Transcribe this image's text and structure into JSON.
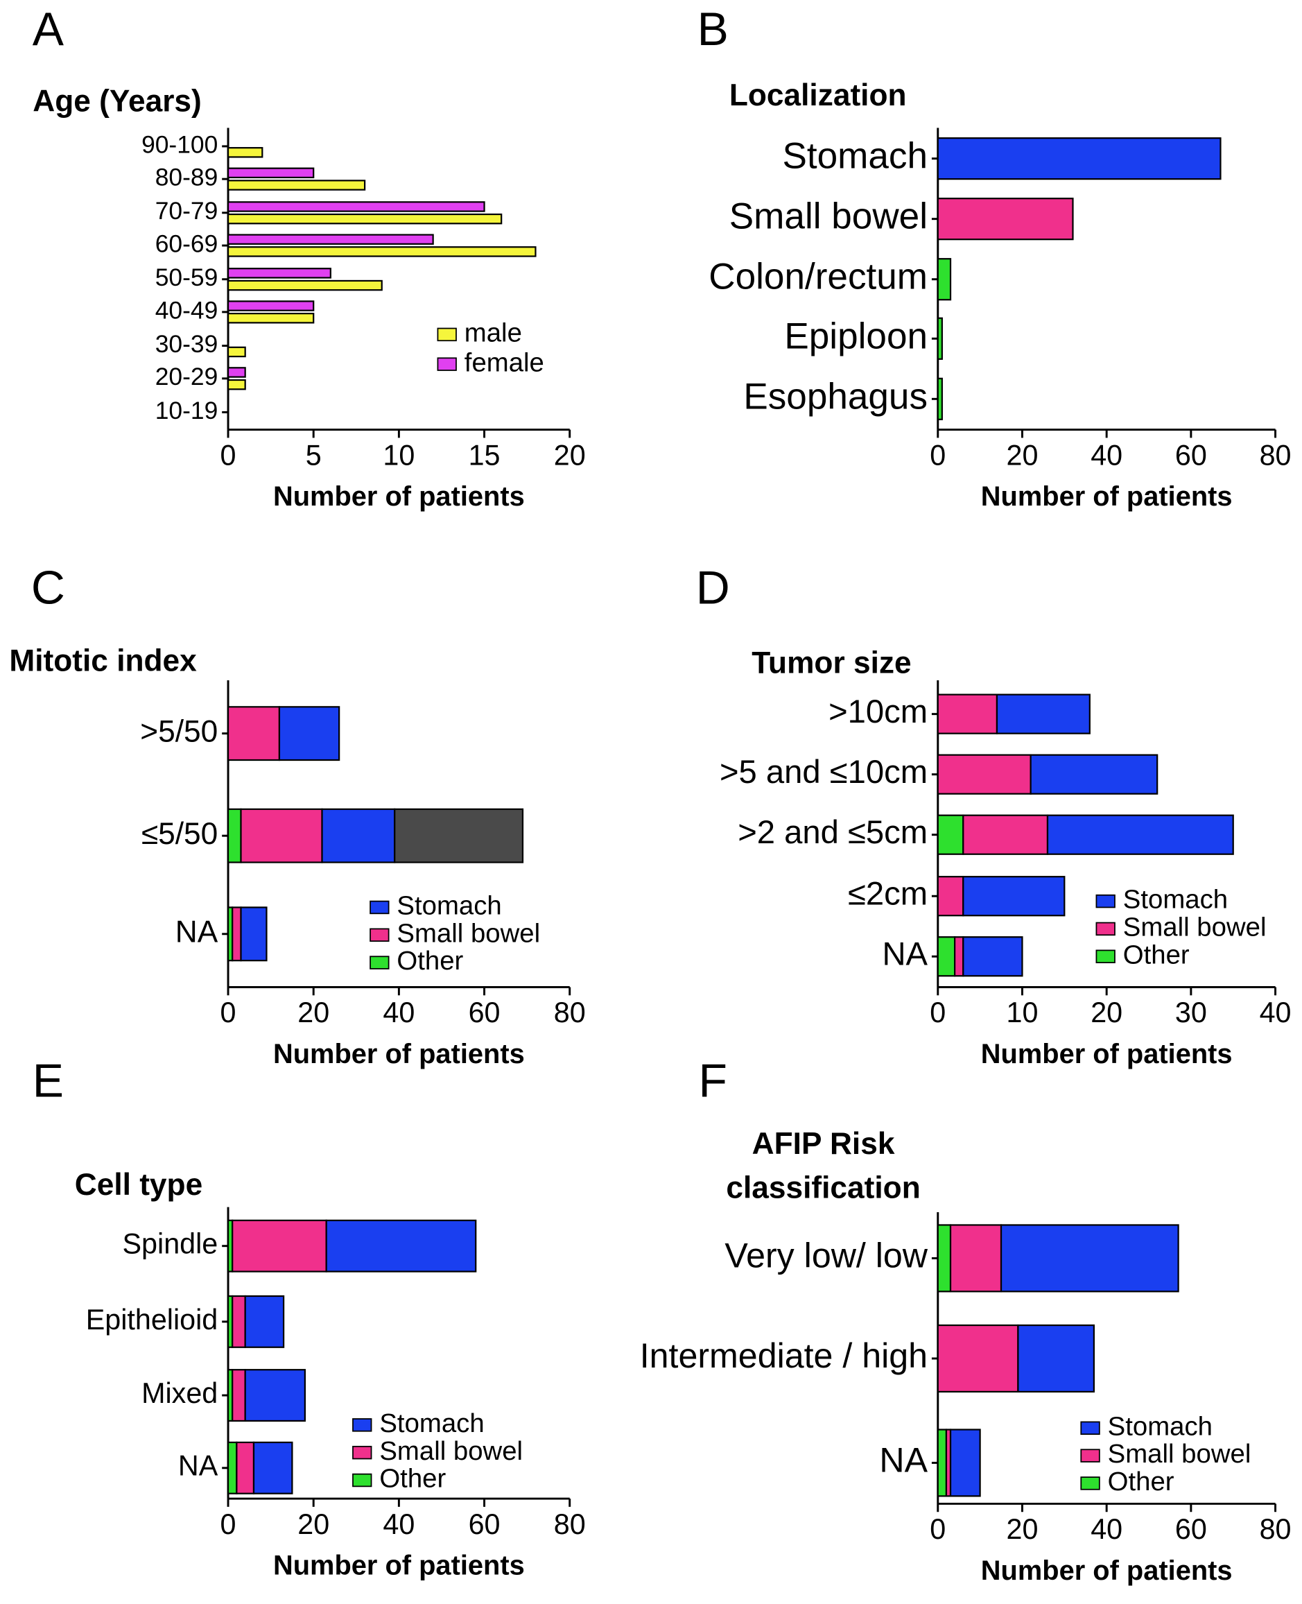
{
  "chart_data": [
    {
      "label": "A",
      "type": "grouped_bar",
      "orientation": "horizontal",
      "title": "Age (Years)",
      "categories": [
        "90-100",
        "80-89",
        "70-79",
        "60-69",
        "50-59",
        "40-49",
        "30-39",
        "20-29",
        "10-19"
      ],
      "series": [
        {
          "name": "male",
          "color": "#f5f53c",
          "values": [
            2,
            8,
            16,
            18,
            9,
            5,
            1,
            1,
            0
          ]
        },
        {
          "name": "female",
          "color": "#e040f0",
          "values": [
            0,
            5,
            15,
            12,
            6,
            5,
            0,
            1,
            0
          ]
        }
      ],
      "xlabel": "Number of patients",
      "xlim": [
        0,
        20
      ],
      "xticks": [
        0,
        5,
        10,
        15,
        20
      ],
      "legend": "lower right"
    },
    {
      "label": "B",
      "type": "bar",
      "orientation": "horizontal",
      "title": "Localization",
      "categories": [
        "Stomach",
        "Small bowel",
        "Colon/rectum",
        "Epiploon",
        "Esophagus"
      ],
      "values": [
        67,
        32,
        3,
        1,
        1
      ],
      "colors": [
        "#1a3ff0",
        "#f0308c",
        "#2ee02e",
        "#2ee02e",
        "#2ee02e"
      ],
      "xlabel": "Number of patients",
      "xlim": [
        0,
        80
      ],
      "xticks": [
        0,
        20,
        40,
        60,
        80
      ]
    },
    {
      "label": "C",
      "type": "stacked_bar",
      "orientation": "horizontal",
      "title": "Mitotic index",
      "categories": [
        ">5/50",
        "≤5/50",
        "NA"
      ],
      "series": [
        {
          "name": "Other",
          "color": "#2ee02e",
          "values": [
            0,
            3,
            1
          ]
        },
        {
          "name": "Small bowel",
          "color": "#f0308c",
          "values": [
            12,
            19,
            2
          ]
        },
        {
          "name": "Stomach",
          "color": "#1a3ff0",
          "values": [
            14,
            17,
            6
          ]
        },
        {
          "color": "#4a4a4a",
          "values": [
            0,
            30,
            0
          ]
        }
      ],
      "xlabel": "Number of patients",
      "xlim": [
        0,
        80
      ],
      "xticks": [
        0,
        20,
        40,
        60,
        80
      ],
      "legend": "lower right"
    },
    {
      "label": "D",
      "type": "stacked_bar",
      "orientation": "horizontal",
      "title": "Tumor size",
      "categories": [
        ">10cm",
        ">5 and ≤10cm",
        ">2 and ≤5cm",
        "≤2cm",
        "NA"
      ],
      "series": [
        {
          "name": "Other",
          "color": "#2ee02e",
          "values": [
            0,
            0,
            3,
            0,
            2
          ]
        },
        {
          "name": "Small bowel",
          "color": "#f0308c",
          "values": [
            7,
            11,
            10,
            3,
            1
          ]
        },
        {
          "name": "Stomach",
          "color": "#1a3ff0",
          "values": [
            11,
            15,
            22,
            12,
            7
          ]
        }
      ],
      "xlabel": "Number of patients",
      "xlim": [
        0,
        40
      ],
      "xticks": [
        0,
        10,
        20,
        30,
        40
      ],
      "legend": "lower right"
    },
    {
      "label": "E",
      "type": "stacked_bar",
      "orientation": "horizontal",
      "title": "Cell type",
      "categories": [
        "Spindle",
        "Epithelioid",
        "Mixed",
        "NA"
      ],
      "series": [
        {
          "name": "Other",
          "color": "#2ee02e",
          "values": [
            1,
            1,
            1,
            2
          ]
        },
        {
          "name": "Small bowel",
          "color": "#f0308c",
          "values": [
            22,
            3,
            3,
            4
          ]
        },
        {
          "name": "Stomach",
          "color": "#1a3ff0",
          "values": [
            35,
            9,
            14,
            9
          ]
        }
      ],
      "xlabel": "Number of patients",
      "xlim": [
        0,
        80
      ],
      "xticks": [
        0,
        20,
        40,
        60,
        80
      ],
      "legend": "lower right"
    },
    {
      "label": "F",
      "type": "stacked_bar",
      "orientation": "horizontal",
      "title": [
        "AFIP Risk",
        "classification"
      ],
      "categories": [
        "Very low/ low",
        "Intermediate / high",
        "NA"
      ],
      "series": [
        {
          "name": "Other",
          "color": "#2ee02e",
          "values": [
            3,
            0,
            2
          ]
        },
        {
          "name": "Small bowel",
          "color": "#f0308c",
          "values": [
            12,
            19,
            1
          ]
        },
        {
          "name": "Stomach",
          "color": "#1a3ff0",
          "values": [
            42,
            18,
            7
          ]
        }
      ],
      "xlabel": "Number of patients",
      "xlim": [
        0,
        80
      ],
      "xticks": [
        0,
        20,
        40,
        60,
        80
      ],
      "legend": "lower right"
    }
  ]
}
